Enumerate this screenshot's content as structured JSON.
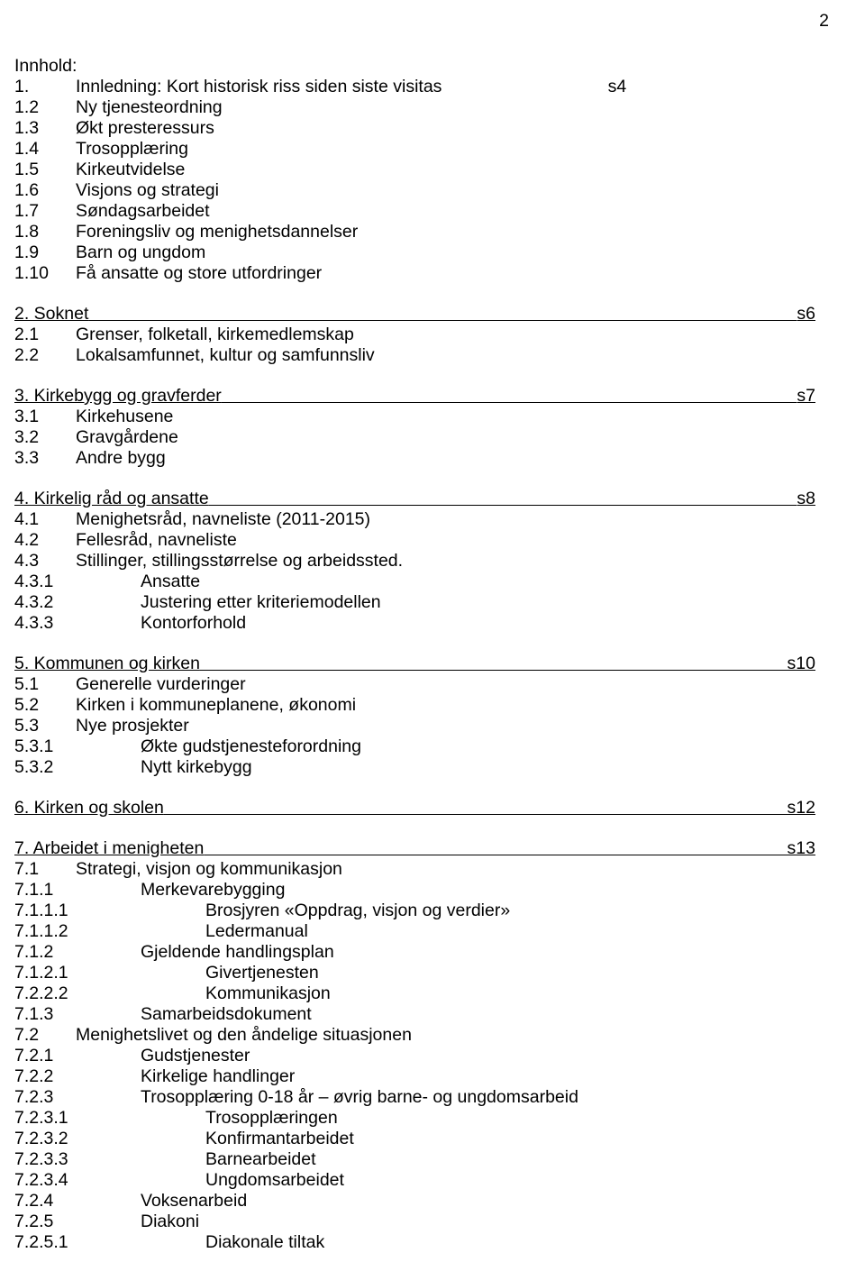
{
  "page_number": "2",
  "title": "Innhold:",
  "section1": {
    "heading_num": "1.",
    "heading_text": "Innledning: Kort historisk riss siden siste visitas",
    "heading_page": "s4",
    "items": [
      {
        "n": "1.2",
        "t": "Ny tjenesteordning"
      },
      {
        "n": "1.3",
        "t": "Økt presteressurs"
      },
      {
        "n": "1.4",
        "t": "Trosopplæring"
      },
      {
        "n": "1.5",
        "t": "Kirkeutvidelse"
      },
      {
        "n": "1.6",
        "t": "Visjons og strategi"
      },
      {
        "n": "1.7",
        "t": "Søndagsarbeidet"
      },
      {
        "n": "1.8",
        "t": "Foreningsliv og menighetsdannelser"
      },
      {
        "n": "1.9",
        "t": "Barn og ungdom"
      },
      {
        "n": "1.10",
        "t": "Få ansatte og store utfordringer"
      }
    ]
  },
  "section2": {
    "heading_text": "2. Soknet",
    "heading_page": "s6",
    "items": [
      {
        "n": "2.1",
        "t": "Grenser, folketall, kirkemedlemskap"
      },
      {
        "n": "2.2",
        "t": "Lokalsamfunnet, kultur og samfunnsliv"
      }
    ]
  },
  "section3": {
    "heading_text": "3. Kirkebygg og gravferder",
    "heading_page": "s7",
    "items": [
      {
        "n": "3.1",
        "t": "Kirkehusene"
      },
      {
        "n": "3.2",
        "t": "Gravgårdene"
      },
      {
        "n": "3.3",
        "t": "Andre bygg"
      }
    ]
  },
  "section4": {
    "heading_text": "4. Kirkelig råd og ansatte",
    "heading_page": "s8",
    "items": [
      {
        "n": "4.1",
        "t": "Menighetsråd, navneliste (2011-2015)"
      },
      {
        "n": "4.2",
        "t": "Fellesråd, navneliste"
      },
      {
        "n": "4.3",
        "t": "Stillinger, stillingsstørrelse og arbeidssted."
      }
    ],
    "subitems": [
      {
        "n": "4.3.1",
        "t": "Ansatte"
      },
      {
        "n": "4.3.2",
        "t": "Justering etter kriteriemodellen"
      },
      {
        "n": "4.3.3",
        "t": "Kontorforhold"
      }
    ]
  },
  "section5": {
    "heading_text": "5. Kommunen og kirken",
    "heading_page": "s10",
    "items": [
      {
        "n": "5.1",
        "t": "Generelle vurderinger"
      },
      {
        "n": "5.2",
        "t": "Kirken i kommuneplanene, økonomi"
      },
      {
        "n": "5.3",
        "t": "Nye prosjekter"
      }
    ],
    "subitems": [
      {
        "n": "5.3.1",
        "t": "Økte gudstjenesteforordning"
      },
      {
        "n": "5.3.2",
        "t": "Nytt kirkebygg"
      }
    ]
  },
  "section6": {
    "heading_text": "6. Kirken og skolen",
    "heading_page": "s12"
  },
  "section7": {
    "heading_text": "7. Arbeidet i menigheten",
    "heading_page": "s13",
    "lines": [
      {
        "n": "7.1",
        "t": "Strategi, visjon og kommunikasjon",
        "w": false
      },
      {
        "n": "7.1.1",
        "t": "Merkevarebygging",
        "w": true
      },
      {
        "n": "7.1.1.1",
        "t": "Brosjyren «Oppdrag, visjon og verdier»",
        "w": true,
        "xl": true
      },
      {
        "n": "7.1.1.2",
        "t": "Ledermanual",
        "w": true,
        "xl": true
      },
      {
        "n": "7.1.2",
        "t": "Gjeldende handlingsplan",
        "w": true
      },
      {
        "n": "7.1.2.1",
        "t": "Givertjenesten",
        "w": true,
        "xl": true
      },
      {
        "n": "7.2.2.2",
        "t": "Kommunikasjon",
        "w": true,
        "xl": true
      },
      {
        "n": "7.1.3",
        "t": "Samarbeidsdokument",
        "w": true
      },
      {
        "n": "7.2",
        "t": "Menighetslivet og den åndelige situasjonen",
        "w": false
      },
      {
        "n": "7.2.1",
        "t": "Gudstjenester",
        "w": true
      },
      {
        "n": "7.2.2",
        "t": "Kirkelige handlinger",
        "w": true
      },
      {
        "n": "7.2.3",
        "t": "Trosopplæring 0-18 år – øvrig barne- og ungdomsarbeid",
        "w": true
      },
      {
        "n": "7.2.3.1",
        "t": "Trosopplæringen",
        "w": true,
        "xl": true
      },
      {
        "n": "7.2.3.2",
        "t": "Konfirmantarbeidet",
        "w": true,
        "xl": true
      },
      {
        "n": "7.2.3.3",
        "t": "Barnearbeidet",
        "w": true,
        "xl": true
      },
      {
        "n": "7.2.3.4",
        "t": "Ungdomsarbeidet",
        "w": true,
        "xl": true
      },
      {
        "n": "7.2.4",
        "t": "Voksenarbeid",
        "w": true
      },
      {
        "n": "7.2.5",
        "t": "Diakoni",
        "w": true
      },
      {
        "n": "7.2.5.1",
        "t": "Diakonale tiltak",
        "w": true,
        "xl": true
      }
    ]
  }
}
